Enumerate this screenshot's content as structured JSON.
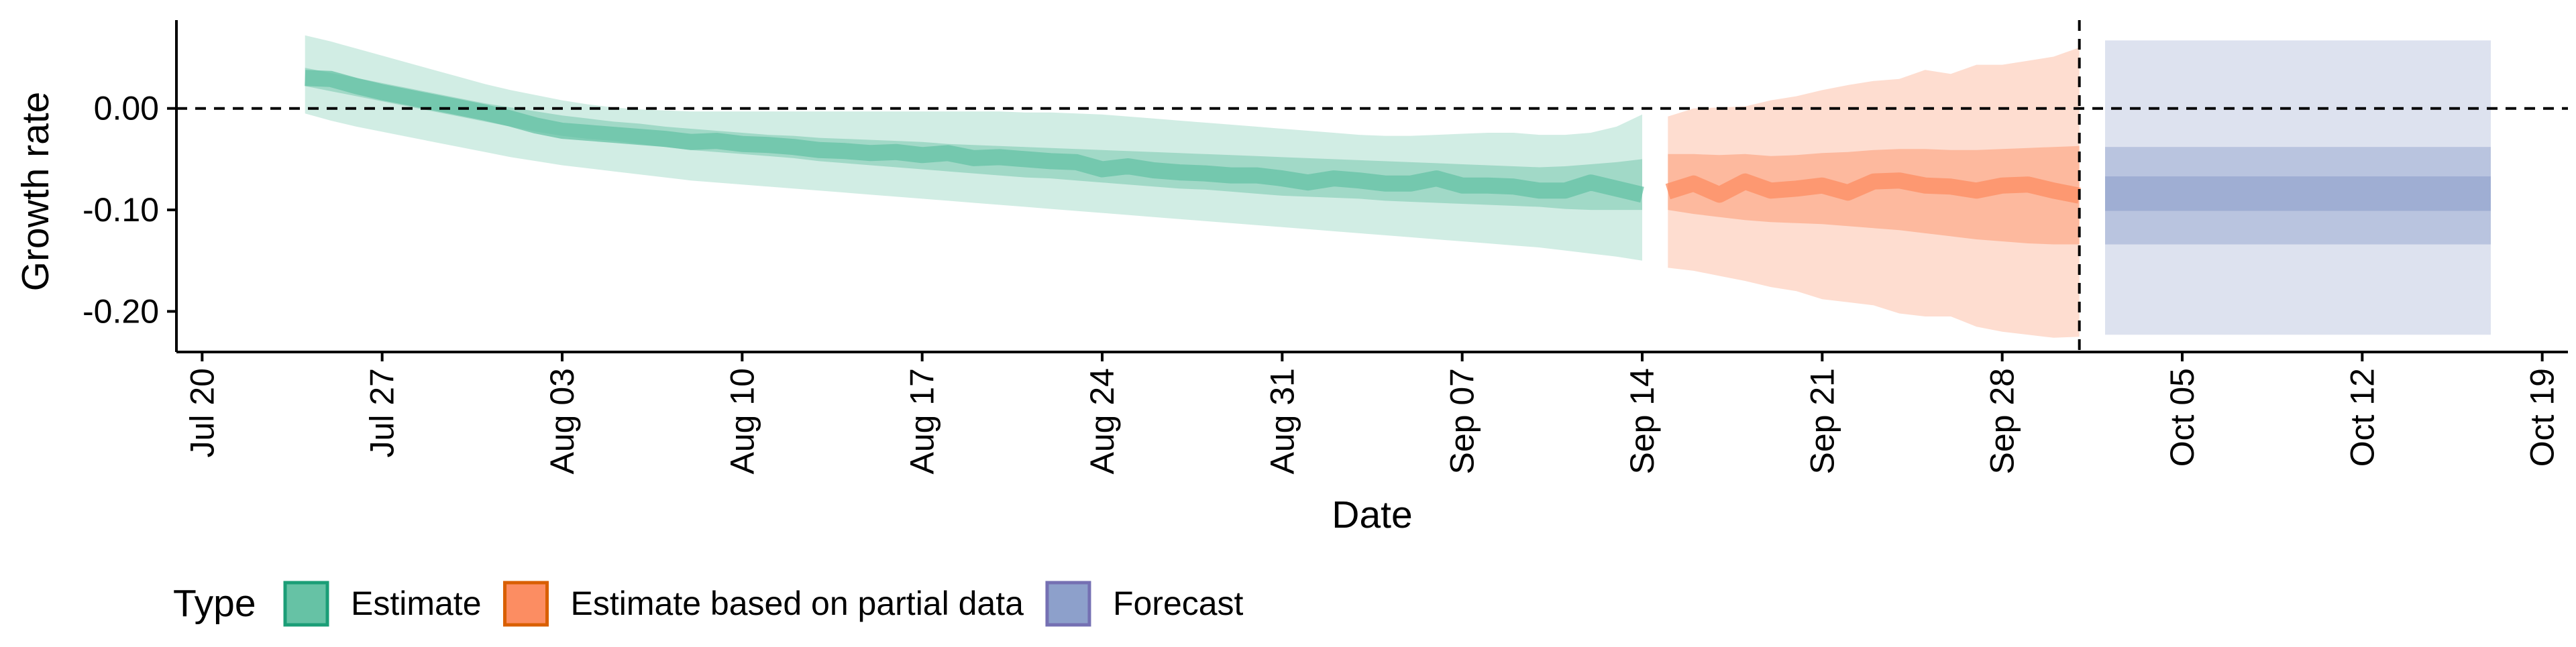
{
  "chart_data": {
    "type": "area",
    "xlabel": "Date",
    "ylabel": "Growth rate",
    "x_axis": {
      "type": "date",
      "range": [
        "2020-07-19",
        "2020-10-20"
      ],
      "ticks": [
        {
          "date": "2020-07-20",
          "label": "Jul 20"
        },
        {
          "date": "2020-07-27",
          "label": "Jul 27"
        },
        {
          "date": "2020-08-03",
          "label": "Aug 03"
        },
        {
          "date": "2020-08-10",
          "label": "Aug 10"
        },
        {
          "date": "2020-08-17",
          "label": "Aug 17"
        },
        {
          "date": "2020-08-24",
          "label": "Aug 24"
        },
        {
          "date": "2020-08-31",
          "label": "Aug 31"
        },
        {
          "date": "2020-09-07",
          "label": "Sep 07"
        },
        {
          "date": "2020-09-14",
          "label": "Sep 14"
        },
        {
          "date": "2020-09-21",
          "label": "Sep 21"
        },
        {
          "date": "2020-09-28",
          "label": "Sep 28"
        },
        {
          "date": "2020-10-05",
          "label": "Oct 05"
        },
        {
          "date": "2020-10-12",
          "label": "Oct 12"
        },
        {
          "date": "2020-10-19",
          "label": "Oct 19"
        }
      ]
    },
    "y_axis": {
      "range": [
        -0.24,
        0.087
      ],
      "ticks": [
        {
          "value": 0.0,
          "label": "0.00"
        },
        {
          "value": -0.1,
          "label": "-0.10"
        },
        {
          "value": -0.2,
          "label": "-0.20"
        }
      ]
    },
    "reference_lines": {
      "horizontal_y": 0.0,
      "vertical_date": "2020-10-01"
    },
    "legend": {
      "title": "Type",
      "position": "bottom-left",
      "items": [
        {
          "key": "estimate",
          "label": "Estimate",
          "fill": "#66c2a5",
          "stroke": "#1b9e77"
        },
        {
          "key": "partial",
          "label": "Estimate based on partial data",
          "fill": "#fc8d62",
          "stroke": "#d95f02"
        },
        {
          "key": "forecast",
          "label": "Forecast",
          "fill": "#8da0cb",
          "stroke": "#7570b3"
        }
      ]
    },
    "colors": {
      "estimate": "#66c2a5",
      "partial": "#fc8d62",
      "forecast": "#8da0cb"
    },
    "series": [
      {
        "key": "estimate",
        "x": [
          "2020-07-24",
          "2020-07-25",
          "2020-07-26",
          "2020-07-27",
          "2020-07-28",
          "2020-07-29",
          "2020-07-30",
          "2020-07-31",
          "2020-08-01",
          "2020-08-02",
          "2020-08-03",
          "2020-08-04",
          "2020-08-05",
          "2020-08-06",
          "2020-08-07",
          "2020-08-08",
          "2020-08-09",
          "2020-08-10",
          "2020-08-11",
          "2020-08-12",
          "2020-08-13",
          "2020-08-14",
          "2020-08-15",
          "2020-08-16",
          "2020-08-17",
          "2020-08-18",
          "2020-08-19",
          "2020-08-20",
          "2020-08-21",
          "2020-08-22",
          "2020-08-23",
          "2020-08-24",
          "2020-08-25",
          "2020-08-26",
          "2020-08-27",
          "2020-08-28",
          "2020-08-29",
          "2020-08-30",
          "2020-08-31",
          "2020-09-01",
          "2020-09-02",
          "2020-09-03",
          "2020-09-04",
          "2020-09-05",
          "2020-09-06",
          "2020-09-07",
          "2020-09-08",
          "2020-09-09",
          "2020-09-10",
          "2020-09-11",
          "2020-09-12",
          "2020-09-13",
          "2020-09-14"
        ],
        "median": [
          0.03,
          0.029,
          0.022,
          0.016,
          0.011,
          0.006,
          0.001,
          -0.004,
          -0.01,
          -0.017,
          -0.022,
          -0.024,
          -0.026,
          -0.028,
          -0.03,
          -0.033,
          -0.032,
          -0.035,
          -0.036,
          -0.038,
          -0.041,
          -0.042,
          -0.044,
          -0.043,
          -0.046,
          -0.044,
          -0.049,
          -0.048,
          -0.05,
          -0.052,
          -0.053,
          -0.06,
          -0.057,
          -0.061,
          -0.063,
          -0.064,
          -0.066,
          -0.066,
          -0.069,
          -0.073,
          -0.069,
          -0.071,
          -0.074,
          -0.074,
          -0.069,
          -0.076,
          -0.076,
          -0.077,
          -0.081,
          -0.081,
          -0.073,
          -0.079,
          -0.085
        ],
        "lower50": [
          0.022,
          0.017,
          0.012,
          0.007,
          0.002,
          -0.003,
          -0.008,
          -0.013,
          -0.018,
          -0.023,
          -0.027,
          -0.03,
          -0.032,
          -0.035,
          -0.038,
          -0.041,
          -0.043,
          -0.045,
          -0.047,
          -0.049,
          -0.052,
          -0.054,
          -0.056,
          -0.058,
          -0.06,
          -0.062,
          -0.064,
          -0.066,
          -0.068,
          -0.069,
          -0.071,
          -0.073,
          -0.075,
          -0.077,
          -0.079,
          -0.08,
          -0.082,
          -0.084,
          -0.086,
          -0.087,
          -0.088,
          -0.089,
          -0.091,
          -0.092,
          -0.093,
          -0.094,
          -0.095,
          -0.096,
          -0.097,
          -0.099,
          -0.1,
          -0.1,
          -0.1
        ],
        "upper50": [
          0.04,
          0.035,
          0.03,
          0.025,
          0.02,
          0.015,
          0.01,
          0.005,
          0.001,
          -0.003,
          -0.007,
          -0.01,
          -0.013,
          -0.015,
          -0.018,
          -0.02,
          -0.022,
          -0.024,
          -0.026,
          -0.027,
          -0.029,
          -0.03,
          -0.031,
          -0.032,
          -0.033,
          -0.035,
          -0.036,
          -0.037,
          -0.038,
          -0.039,
          -0.04,
          -0.041,
          -0.042,
          -0.043,
          -0.044,
          -0.045,
          -0.046,
          -0.047,
          -0.048,
          -0.049,
          -0.05,
          -0.051,
          -0.052,
          -0.053,
          -0.054,
          -0.055,
          -0.056,
          -0.057,
          -0.058,
          -0.057,
          -0.055,
          -0.053,
          -0.05
        ],
        "lower90": [
          -0.005,
          -0.012,
          -0.018,
          -0.023,
          -0.028,
          -0.033,
          -0.038,
          -0.043,
          -0.048,
          -0.052,
          -0.056,
          -0.059,
          -0.062,
          -0.065,
          -0.068,
          -0.071,
          -0.073,
          -0.075,
          -0.077,
          -0.079,
          -0.081,
          -0.083,
          -0.085,
          -0.087,
          -0.089,
          -0.091,
          -0.093,
          -0.095,
          -0.097,
          -0.099,
          -0.101,
          -0.103,
          -0.105,
          -0.107,
          -0.109,
          -0.111,
          -0.113,
          -0.115,
          -0.117,
          -0.119,
          -0.121,
          -0.123,
          -0.125,
          -0.127,
          -0.129,
          -0.131,
          -0.133,
          -0.135,
          -0.137,
          -0.14,
          -0.143,
          -0.146,
          -0.15
        ],
        "upper90": [
          0.072,
          0.066,
          0.059,
          0.052,
          0.045,
          0.038,
          0.031,
          0.024,
          0.018,
          0.013,
          0.008,
          0.004,
          0.001,
          -0.001,
          -0.002,
          -0.003,
          -0.003,
          -0.003,
          -0.003,
          -0.003,
          -0.003,
          -0.003,
          -0.003,
          -0.003,
          -0.003,
          -0.003,
          -0.003,
          -0.003,
          -0.004,
          -0.004,
          -0.005,
          -0.006,
          -0.008,
          -0.01,
          -0.012,
          -0.014,
          -0.016,
          -0.018,
          -0.02,
          -0.022,
          -0.024,
          -0.026,
          -0.027,
          -0.027,
          -0.026,
          -0.025,
          -0.024,
          -0.024,
          -0.026,
          -0.026,
          -0.024,
          -0.018,
          -0.006
        ]
      },
      {
        "key": "partial",
        "x": [
          "2020-09-15",
          "2020-09-16",
          "2020-09-17",
          "2020-09-18",
          "2020-09-19",
          "2020-09-20",
          "2020-09-21",
          "2020-09-22",
          "2020-09-23",
          "2020-09-24",
          "2020-09-25",
          "2020-09-26",
          "2020-09-27",
          "2020-09-28",
          "2020-09-29",
          "2020-09-30",
          "2020-10-01"
        ],
        "median": [
          -0.082,
          -0.074,
          -0.085,
          -0.072,
          -0.081,
          -0.079,
          -0.076,
          -0.083,
          -0.072,
          -0.071,
          -0.076,
          -0.077,
          -0.081,
          -0.076,
          -0.075,
          -0.081,
          -0.086
        ],
        "lower50": [
          -0.1,
          -0.104,
          -0.107,
          -0.11,
          -0.112,
          -0.113,
          -0.114,
          -0.116,
          -0.118,
          -0.12,
          -0.123,
          -0.126,
          -0.129,
          -0.131,
          -0.133,
          -0.134,
          -0.134
        ],
        "upper50": [
          -0.045,
          -0.045,
          -0.046,
          -0.045,
          -0.047,
          -0.046,
          -0.044,
          -0.043,
          -0.041,
          -0.04,
          -0.04,
          -0.041,
          -0.041,
          -0.04,
          -0.039,
          -0.038,
          -0.037
        ],
        "lower90": [
          -0.157,
          -0.16,
          -0.165,
          -0.17,
          -0.176,
          -0.18,
          -0.188,
          -0.191,
          -0.194,
          -0.202,
          -0.205,
          -0.205,
          -0.215,
          -0.22,
          -0.223,
          -0.226,
          -0.225
        ],
        "upper90": [
          -0.008,
          0.0,
          0.001,
          0.002,
          0.008,
          0.012,
          0.018,
          0.023,
          0.027,
          0.029,
          0.038,
          0.034,
          0.043,
          0.043,
          0.047,
          0.051,
          0.06
        ]
      },
      {
        "key": "forecast",
        "x": [
          "2020-10-02",
          "2020-10-17"
        ],
        "lower90": -0.223,
        "upper90": 0.067,
        "lower50": -0.134,
        "upper50": -0.038,
        "lower20": -0.101,
        "upper20": -0.067
      }
    ]
  }
}
